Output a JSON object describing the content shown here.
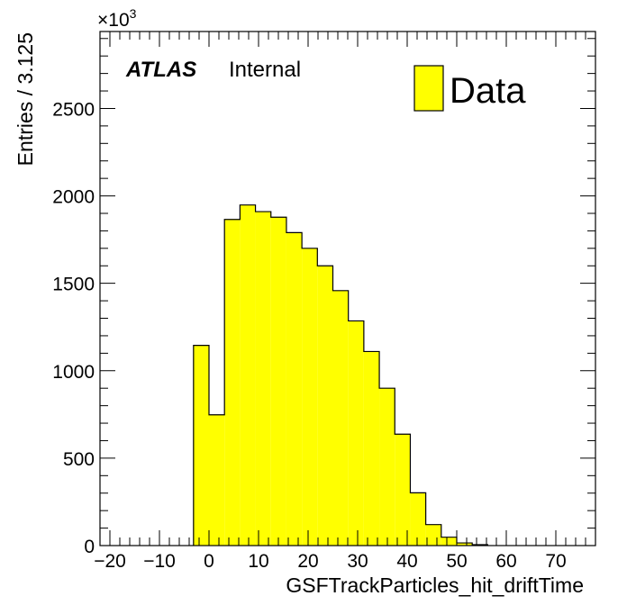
{
  "chart_data": {
    "type": "bar",
    "histogram": true,
    "bin_width": 3.125,
    "bin_edges": [
      -3.125,
      0,
      3.125,
      6.25,
      9.375,
      12.5,
      15.625,
      18.75,
      21.875,
      25,
      28.125,
      31.25,
      34.375,
      37.5,
      40.625,
      43.75,
      46.875,
      50,
      53.125,
      56.25
    ],
    "values": [
      1145,
      748,
      1865,
      1948,
      1910,
      1878,
      1790,
      1700,
      1600,
      1458,
      1285,
      1110,
      900,
      637,
      302,
      120,
      48,
      15,
      5
    ],
    "series": [
      {
        "name": "Data",
        "color": "#ffff00"
      }
    ],
    "xlabel": "GSFTrackParticles_hit_driftTime",
    "ylabel": "Entries / 3.125",
    "xlim": [
      -22,
      78
    ],
    "ylim": [
      0,
      2940
    ],
    "x_ticks": [
      -20,
      -10,
      0,
      10,
      20,
      30,
      40,
      50,
      60,
      70
    ],
    "x_tick_labels": [
      "−20",
      "−10",
      "0",
      "10",
      "20",
      "30",
      "40",
      "50",
      "60",
      "70"
    ],
    "y_ticks": [
      0,
      500,
      1000,
      1500,
      2000,
      2500
    ],
    "y_tick_labels": [
      "0",
      "500",
      "1000",
      "1500",
      "2000",
      "2500"
    ],
    "y_scale_factor": {
      "base": "×10",
      "exponent": "3"
    },
    "annotation": {
      "atlas": "ATLAS",
      "status": "Internal"
    },
    "legend": {
      "placement": "top-right",
      "entries": [
        "Data"
      ]
    },
    "grid": false
  }
}
